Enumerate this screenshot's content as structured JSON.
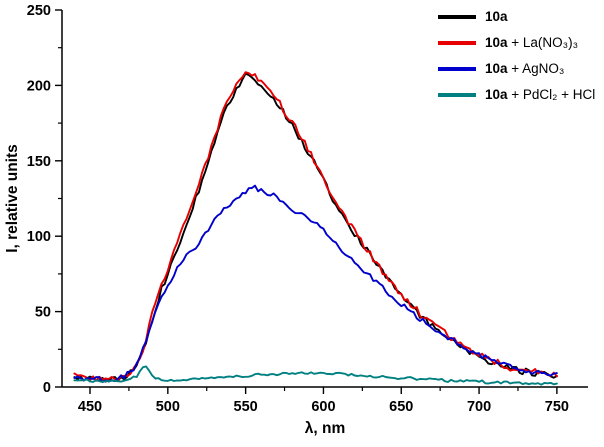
{
  "figure": {
    "xlabel": "λ, nm",
    "ylabel": "I, relative units"
  },
  "legend": {
    "items": [
      {
        "bold": "10a",
        "rest": "",
        "color": "#000000"
      },
      {
        "bold": "10a",
        "rest": " + La(NO₃)₃",
        "color": "#e60000"
      },
      {
        "bold": "10a",
        "rest": " + AgNO₃",
        "color": "#0000cd"
      },
      {
        "bold": "10a",
        "rest": " + PdCl₂ + HCl",
        "color": "#008080"
      }
    ]
  },
  "chart_data": {
    "type": "line",
    "title": "",
    "xlabel": "λ, nm",
    "ylabel": "I, relative units",
    "xlim": [
      432,
      770
    ],
    "ylim": [
      0,
      250
    ],
    "x_ticks": [
      450,
      500,
      550,
      600,
      650,
      700,
      750
    ],
    "y_ticks": [
      0,
      50,
      100,
      150,
      200,
      250
    ],
    "x_minor_step": 25,
    "y_minor_step": 25,
    "grid": false,
    "legend_position": "top-right",
    "x": [
      440,
      445,
      450,
      455,
      460,
      465,
      470,
      475,
      480,
      485,
      490,
      495,
      500,
      505,
      510,
      515,
      520,
      525,
      530,
      535,
      540,
      545,
      550,
      555,
      560,
      565,
      570,
      575,
      580,
      585,
      590,
      595,
      600,
      605,
      610,
      615,
      620,
      625,
      630,
      635,
      640,
      645,
      650,
      655,
      660,
      665,
      670,
      675,
      680,
      685,
      690,
      695,
      700,
      705,
      710,
      715,
      720,
      725,
      730,
      735,
      740,
      745,
      750
    ],
    "series": [
      {
        "id": "10a",
        "name": "10a",
        "color": "#000000",
        "noise": 2.2,
        "values": [
          7,
          6,
          5,
          5,
          4,
          5,
          5,
          8,
          13,
          25,
          45,
          62,
          76,
          90,
          103,
          117,
          131,
          147,
          163,
          178,
          190,
          200,
          206,
          204,
          199,
          195,
          189,
          181,
          173,
          165,
          156,
          147,
          138,
          127,
          117,
          109,
          102,
          95,
          88,
          80,
          73,
          67,
          61,
          55,
          50,
          45,
          41,
          37,
          33,
          29,
          26,
          23,
          20,
          18,
          16,
          14,
          12,
          11,
          10,
          9,
          8,
          8,
          7
        ]
      },
      {
        "id": "10a-la-no3-3",
        "name": "10a + La(NO₃)₃",
        "color": "#e60000",
        "noise": 2.2,
        "values": [
          7,
          6,
          5,
          5,
          4,
          5,
          6,
          9,
          14,
          27,
          48,
          65,
          79,
          93,
          106,
          120,
          134,
          150,
          166,
          181,
          193,
          203,
          209,
          207,
          202,
          197,
          191,
          183,
          175,
          167,
          158,
          149,
          139,
          129,
          119,
          111,
          103,
          96,
          88,
          81,
          74,
          68,
          62,
          56,
          51,
          46,
          42,
          38,
          34,
          30,
          27,
          24,
          21,
          19,
          17,
          15,
          13,
          12,
          11,
          10,
          9,
          8,
          8
        ]
      },
      {
        "id": "10a-agno3",
        "name": "10a + AgNO₃",
        "color": "#0000cd",
        "noise": 1.8,
        "values": [
          7,
          6,
          5,
          5,
          4,
          5,
          6,
          9,
          15,
          28,
          45,
          58,
          68,
          77,
          84,
          90,
          96,
          103,
          110,
          116,
          121,
          126,
          130,
          132,
          131,
          128,
          126,
          122,
          118,
          114,
          113,
          109,
          104,
          98,
          93,
          88,
          83,
          78,
          73,
          68,
          64,
          59,
          55,
          51,
          47,
          43,
          40,
          36,
          33,
          30,
          27,
          24,
          22,
          19,
          17,
          15,
          13,
          12,
          11,
          10,
          9,
          8,
          8
        ]
      },
      {
        "id": "10a-pdcl2-hcl",
        "name": "10a + PdCl₂ + HCl",
        "color": "#008080",
        "noise": 0.8,
        "values": [
          5,
          5,
          4,
          4,
          4,
          4,
          4,
          5,
          7,
          15,
          7,
          5,
          4,
          4,
          5,
          5,
          5,
          6,
          6,
          6,
          7,
          7,
          7,
          8,
          8,
          8,
          8,
          9,
          9,
          9,
          9,
          9,
          9,
          9,
          9,
          8,
          8,
          8,
          7,
          7,
          7,
          6,
          6,
          6,
          5,
          5,
          5,
          5,
          4,
          4,
          4,
          4,
          4,
          3,
          3,
          3,
          3,
          3,
          2,
          2,
          2,
          2,
          2
        ]
      }
    ]
  }
}
